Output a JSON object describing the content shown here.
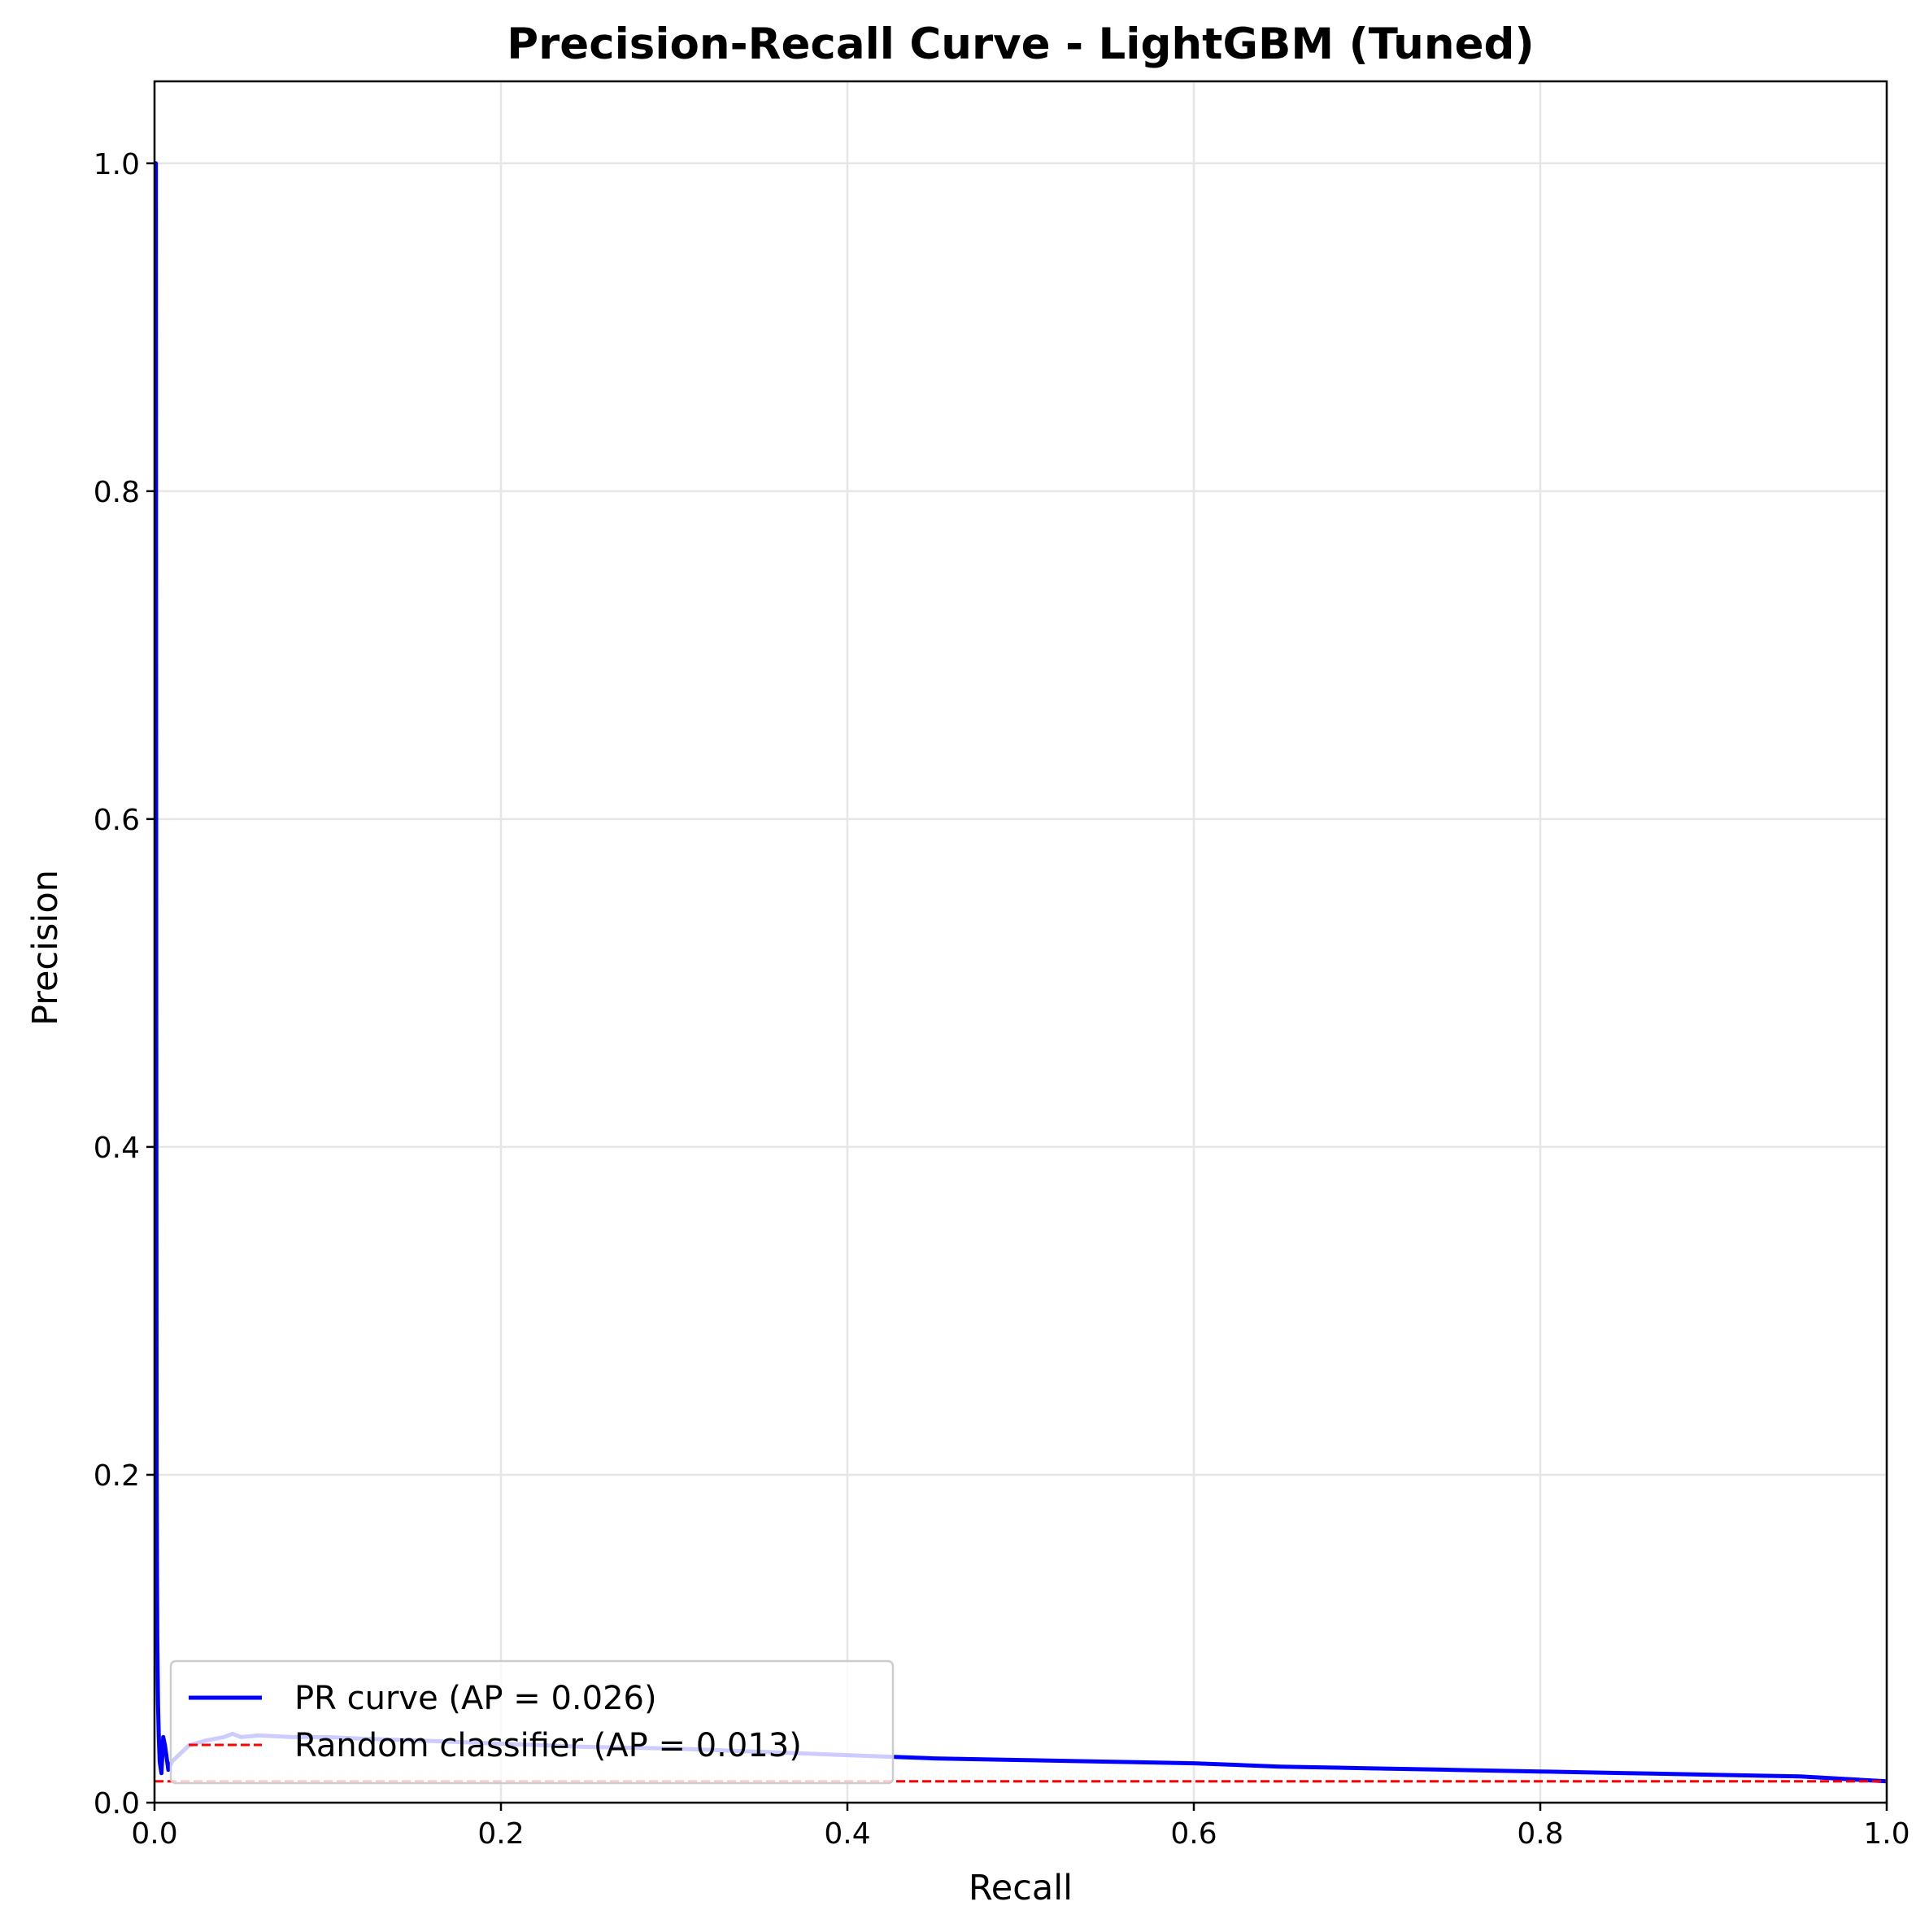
{
  "chart_data": {
    "type": "line",
    "title": "Precision-Recall Curve - LightGBM (Tuned)",
    "xlabel": "Recall",
    "ylabel": "Precision",
    "xlim": [
      0.0,
      1.0
    ],
    "ylim": [
      0.0,
      1.05
    ],
    "x_ticks": [
      "0.0",
      "0.2",
      "0.4",
      "0.6",
      "0.8",
      "1.0"
    ],
    "y_ticks": [
      "0.0",
      "0.2",
      "0.4",
      "0.6",
      "0.8",
      "1.0"
    ],
    "grid": true,
    "legend_position": "lower-left",
    "series": [
      {
        "name": "PR curve (AP = 0.026)",
        "color": "#0000ff",
        "style": "solid",
        "x": [
          0.0,
          0.0008,
          0.001,
          0.0012,
          0.0014,
          0.0016,
          0.002,
          0.0025,
          0.003,
          0.004,
          0.005,
          0.006,
          0.008,
          0.01,
          0.015,
          0.02,
          0.03,
          0.04,
          0.045,
          0.05,
          0.06,
          0.08,
          0.1,
          0.12,
          0.15,
          0.2,
          0.25,
          0.3,
          0.35,
          0.4,
          0.45,
          0.5,
          0.55,
          0.6,
          0.65,
          0.7,
          0.75,
          0.8,
          0.85,
          0.9,
          0.95,
          1.0
        ],
        "y": [
          1.0,
          1.0,
          0.5,
          0.2,
          0.143,
          0.1,
          0.06,
          0.04,
          0.025,
          0.018,
          0.04,
          0.035,
          0.02,
          0.025,
          0.03,
          0.035,
          0.038,
          0.04,
          0.042,
          0.04,
          0.041,
          0.04,
          0.04,
          0.039,
          0.038,
          0.036,
          0.034,
          0.033,
          0.031,
          0.029,
          0.027,
          0.026,
          0.025,
          0.024,
          0.022,
          0.021,
          0.02,
          0.019,
          0.018,
          0.017,
          0.016,
          0.013
        ]
      },
      {
        "name": "Random classifier (AP = 0.013)",
        "color": "#ff0000",
        "style": "dashed",
        "x": [
          0.0,
          1.0
        ],
        "y": [
          0.013,
          0.013
        ]
      }
    ]
  }
}
